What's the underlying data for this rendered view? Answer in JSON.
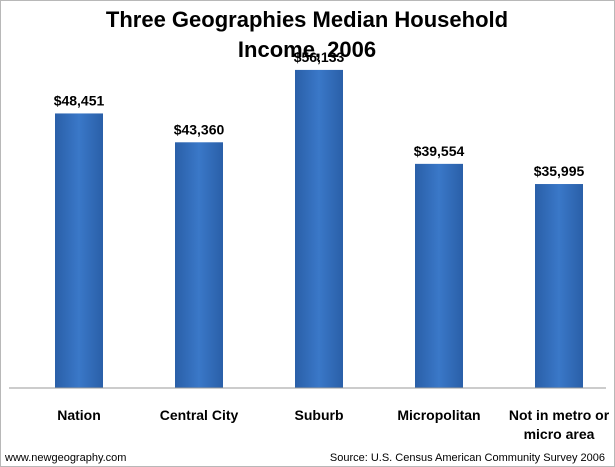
{
  "chart_data": {
    "type": "bar",
    "title_lines": [
      "Three Geographies Median Household",
      "Income, 2006"
    ],
    "categories": [
      [
        "Nation"
      ],
      [
        "Central City"
      ],
      [
        "Suburb"
      ],
      [
        "Micropolitan"
      ],
      [
        "Not in metro or",
        "micro area"
      ]
    ],
    "values": [
      48451,
      43360,
      56133,
      39554,
      35995
    ],
    "value_labels": [
      "$48,451",
      "$43,360",
      "$56,133",
      "$39,554",
      "$35,995"
    ],
    "ylim": [
      0,
      60000
    ],
    "grid": false,
    "legend": "none",
    "bar_color": "#3a78c8",
    "bar_color_dark": "#2a5fa8"
  },
  "footer": {
    "website": "www.newgeography.com",
    "source": "Source:  U.S. Census American Community Survey 2006"
  }
}
